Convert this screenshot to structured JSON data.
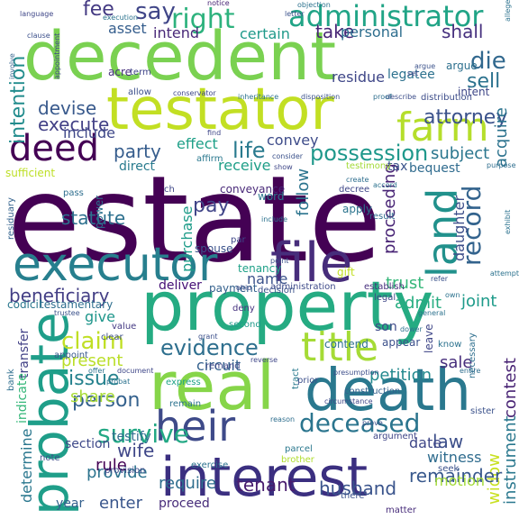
{
  "colors": {
    "background": "#ffffff",
    "palette": [
      "#440154",
      "#46327e",
      "#365c8d",
      "#277f8e",
      "#1fa187",
      "#4ac16d",
      "#a0da39",
      "#dde318"
    ]
  },
  "words": [
    {
      "text": "estate",
      "color": "#440154"
    },
    {
      "text": "decedent",
      "color": "#7ad151"
    },
    {
      "text": "testator",
      "color": "#c2df23"
    },
    {
      "text": "property",
      "color": "#25ab82"
    },
    {
      "text": "interest",
      "color": "#3b2f80"
    },
    {
      "text": "real",
      "color": "#86d549"
    },
    {
      "text": "death",
      "color": "#2a788e"
    },
    {
      "text": "probate",
      "color": "#1f9e89"
    },
    {
      "text": "executor",
      "color": "#277f8e"
    },
    {
      "text": "file",
      "color": "#472d7b"
    },
    {
      "text": "title",
      "color": "#a5db36"
    },
    {
      "text": "heir",
      "color": "#3e4a89"
    },
    {
      "text": "deed",
      "color": "#440154"
    },
    {
      "text": "land",
      "color": "#21918c"
    },
    {
      "text": "farm",
      "color": "#b5de2b"
    },
    {
      "text": "administrator",
      "color": "#20a486"
    },
    {
      "text": "right",
      "color": "#2db27d"
    },
    {
      "text": "say",
      "color": "#404688"
    },
    {
      "text": "fee",
      "color": "#443a83"
    },
    {
      "text": "record",
      "color": "#33638d"
    },
    {
      "text": "possession",
      "color": "#1f988b"
    },
    {
      "text": "attorney",
      "color": "#3b528b"
    },
    {
      "text": "die",
      "color": "#31688e"
    },
    {
      "text": "sell",
      "color": "#2c728e"
    },
    {
      "text": "take",
      "color": "#482576"
    },
    {
      "text": "shall",
      "color": "#46307e"
    },
    {
      "text": "personal",
      "color": "#2e6e8e"
    },
    {
      "text": "certain",
      "color": "#1f9a8a"
    },
    {
      "text": "intend",
      "color": "#482878"
    },
    {
      "text": "asset",
      "color": "#355e8d"
    },
    {
      "text": "intention",
      "color": "#228c8d"
    },
    {
      "text": "devise",
      "color": "#38598c"
    },
    {
      "text": "execute",
      "color": "#424086"
    },
    {
      "text": "include",
      "color": "#3f4889"
    },
    {
      "text": "party",
      "color": "#365d8d"
    },
    {
      "text": "effect",
      "color": "#1fa088"
    },
    {
      "text": "life",
      "color": "#297a8e"
    },
    {
      "text": "convey",
      "color": "#3e4c8a"
    },
    {
      "text": "receive",
      "color": "#1f9f88"
    },
    {
      "text": "subject",
      "color": "#2a768e"
    },
    {
      "text": "acquire",
      "color": "#2c738e"
    },
    {
      "text": "deceased",
      "color": "#2b758e"
    },
    {
      "text": "claim",
      "color": "#c0df25"
    },
    {
      "text": "evidence",
      "color": "#2e6f8e"
    },
    {
      "text": "survive",
      "color": "#22a884"
    },
    {
      "text": "issue",
      "color": "#26828e"
    },
    {
      "text": "person",
      "color": "#34618d"
    },
    {
      "text": "beneficiary",
      "color": "#433e85"
    },
    {
      "text": "statute",
      "color": "#2d708e"
    },
    {
      "text": "pay",
      "color": "#404588"
    },
    {
      "text": "trust",
      "color": "#35b779"
    },
    {
      "text": "admit",
      "color": "#27ad81"
    },
    {
      "text": "joint",
      "color": "#1e9b8a"
    },
    {
      "text": "law",
      "color": "#3c4f8a"
    },
    {
      "text": "sale",
      "color": "#472e7c"
    },
    {
      "text": "petition",
      "color": "#23898e"
    },
    {
      "text": "contest",
      "color": "#482374"
    },
    {
      "text": "instrument",
      "color": "#2a788e"
    },
    {
      "text": "widow",
      "color": "#c8e020"
    },
    {
      "text": "remainder",
      "color": "#38588c"
    },
    {
      "text": "husband",
      "color": "#3a548c"
    },
    {
      "text": "tenant",
      "color": "#481c6e"
    },
    {
      "text": "require",
      "color": "#2e6e8e"
    },
    {
      "text": "enter",
      "color": "#39568c"
    },
    {
      "text": "provide",
      "color": "#2c738e"
    },
    {
      "text": "wife",
      "color": "#3f4788"
    },
    {
      "text": "share",
      "color": "#a8db34"
    },
    {
      "text": "present",
      "color": "#bade28"
    },
    {
      "text": "give",
      "color": "#1f968b"
    },
    {
      "text": "circuit",
      "color": "#34618d"
    },
    {
      "text": "follow",
      "color": "#2b748e"
    },
    {
      "text": "proceeding",
      "color": "#482475"
    },
    {
      "text": "daughter",
      "color": "#3d4e8a"
    },
    {
      "text": "purchase",
      "color": "#1e9c89"
    },
    {
      "text": "name",
      "color": "#3b528b"
    },
    {
      "text": "deliver",
      "color": "#440f76"
    },
    {
      "text": "determine",
      "color": "#2a778e"
    },
    {
      "text": "rule",
      "color": "#440154"
    },
    {
      "text": "section",
      "color": "#3e4989"
    },
    {
      "text": "testify",
      "color": "#2f6c8e"
    },
    {
      "text": "transfer",
      "color": "#424186"
    },
    {
      "text": "direct",
      "color": "#297b8e"
    },
    {
      "text": "residue",
      "color": "#3f4788"
    },
    {
      "text": "legatee",
      "color": "#2c718e"
    },
    {
      "text": "tax",
      "color": "#3a538b"
    },
    {
      "text": "bequest",
      "color": "#2f6b8e"
    },
    {
      "text": "apply",
      "color": "#2b748e"
    },
    {
      "text": "date",
      "color": "#3f4788"
    },
    {
      "text": "year",
      "color": "#34608d"
    },
    {
      "text": "proceed",
      "color": "#472c7a"
    },
    {
      "text": "witness",
      "color": "#2f6c8e"
    },
    {
      "text": "motion",
      "color": "#a2da37"
    },
    {
      "text": "son",
      "color": "#3e4a89"
    },
    {
      "text": "contend",
      "color": "#2d718e"
    },
    {
      "text": "appear",
      "color": "#3c508b"
    },
    {
      "text": "intent",
      "color": "#3f4788"
    },
    {
      "text": "argue",
      "color": "#2d708e"
    },
    {
      "text": "acre",
      "color": "#472f7d"
    },
    {
      "text": "term",
      "color": "#404588"
    },
    {
      "text": "allow",
      "color": "#3c4f8a"
    },
    {
      "text": "testimony",
      "color": "#a2da37"
    },
    {
      "text": "distribution",
      "color": "#3d4d8a"
    },
    {
      "text": "conveyance",
      "color": "#482878"
    },
    {
      "text": "spouse",
      "color": "#3b528b"
    },
    {
      "text": "tenancy",
      "color": "#1fa188"
    },
    {
      "text": "power",
      "color": "#2c728e"
    },
    {
      "text": "payment",
      "color": "#34618d"
    },
    {
      "text": "administration",
      "color": "#3e4a89"
    },
    {
      "text": "establish",
      "color": "#472f7d"
    },
    {
      "text": "legal",
      "color": "#404688"
    },
    {
      "text": "codicil",
      "color": "#2a778e"
    },
    {
      "text": "testamentary",
      "color": "#2e6e8e"
    },
    {
      "text": "sufficient",
      "color": "#bddf26"
    },
    {
      "text": "residuary",
      "color": "#33628d"
    },
    {
      "text": "word",
      "color": "#2a788e"
    },
    {
      "text": "decree",
      "color": "#3f4788"
    },
    {
      "text": "result",
      "color": "#2f6c8e"
    },
    {
      "text": "gift",
      "color": "#c2df23"
    },
    {
      "text": "decision",
      "color": "#3b528b"
    },
    {
      "text": "deny",
      "color": "#46337f"
    },
    {
      "text": "second",
      "color": "#1f9a8a"
    },
    {
      "text": "leave",
      "color": "#3f4788"
    },
    {
      "text": "know",
      "color": "#2c728e"
    },
    {
      "text": "value",
      "color": "#443983"
    },
    {
      "text": "clear",
      "color": "#3d4e8a"
    },
    {
      "text": "appoint",
      "color": "#38588c"
    },
    {
      "text": "bank",
      "color": "#2e6e8e"
    },
    {
      "text": "indicate",
      "color": "#35b779"
    },
    {
      "text": "remand",
      "color": "#3f4889"
    },
    {
      "text": "express",
      "color": "#20a386"
    },
    {
      "text": "remain",
      "color": "#2c728e"
    },
    {
      "text": "tract",
      "color": "#297a8e"
    },
    {
      "text": "prior",
      "color": "#3c4f8a"
    },
    {
      "text": "construction",
      "color": "#34618d"
    },
    {
      "text": "parcel",
      "color": "#2a788e"
    },
    {
      "text": "brother",
      "color": "#b0dd2f"
    },
    {
      "text": "necessary",
      "color": "#2e6f8e"
    },
    {
      "text": "sister",
      "color": "#3b528b"
    },
    {
      "text": "argument",
      "color": "#404688"
    },
    {
      "text": "seek",
      "color": "#3b528b"
    },
    {
      "text": "note",
      "color": "#3d4e8a"
    },
    {
      "text": "provision",
      "color": "#3e4989"
    },
    {
      "text": "exercise",
      "color": "#2c728e"
    },
    {
      "text": "matter",
      "color": "#472c7a"
    },
    {
      "text": "there",
      "color": "#3b528b"
    },
    {
      "text": "pass",
      "color": "#2e6e8e"
    },
    {
      "text": "notice",
      "color": "#482475"
    },
    {
      "text": "objection",
      "color": "#2c728e"
    },
    {
      "text": "letter",
      "color": "#3b528b"
    },
    {
      "text": "language",
      "color": "#3f4788"
    },
    {
      "text": "execution",
      "color": "#2c738e"
    },
    {
      "text": "clause",
      "color": "#3c508b"
    },
    {
      "text": "appointment",
      "color": "#3f4788"
    },
    {
      "text": "involve",
      "color": "#33638d"
    },
    {
      "text": "disposition",
      "color": "#3b528b"
    },
    {
      "text": "inheritance",
      "color": "#2c728e"
    },
    {
      "text": "conservator",
      "color": "#3f4788"
    },
    {
      "text": "describe",
      "color": "#3d4e8a"
    },
    {
      "text": "proof",
      "color": "#2e6e8e"
    },
    {
      "text": "consider",
      "color": "#3b528b"
    },
    {
      "text": "affirm",
      "color": "#2a788e"
    },
    {
      "text": "show",
      "color": "#3f4788"
    },
    {
      "text": "set",
      "color": "#404688"
    },
    {
      "text": "allege",
      "color": "#2c728e"
    },
    {
      "text": "grant",
      "color": "#3c508b"
    },
    {
      "text": "reason",
      "color": "#2e6e8e"
    },
    {
      "text": "prove",
      "color": "#3b528b"
    },
    {
      "text": "offer",
      "color": "#2c728e"
    },
    {
      "text": "document",
      "color": "#3f4788"
    },
    {
      "text": "general",
      "color": "#2c728e"
    },
    {
      "text": "trustee",
      "color": "#3b528b"
    },
    {
      "text": "reverse",
      "color": "#3f4788"
    },
    {
      "text": "presumption",
      "color": "#3d4e8a"
    },
    {
      "text": "circumstance",
      "color": "#3f4788"
    },
    {
      "text": "entire",
      "color": "#2e6e8e"
    },
    {
      "text": "refer",
      "color": "#3b528b"
    },
    {
      "text": "own",
      "color": "#2c728e"
    },
    {
      "text": "purpose",
      "color": "#2e6e8e"
    },
    {
      "text": "exhibit",
      "color": "#2c728e"
    },
    {
      "text": "ch",
      "color": "#3f4788"
    },
    {
      "text": "par",
      "color": "#3f4788"
    },
    {
      "text": "attempt",
      "color": "#2c728e"
    },
    {
      "text": "create",
      "color": "#2e6e8e"
    },
    {
      "text": "accord",
      "color": "#2c728e"
    },
    {
      "text": "find",
      "color": "#3f4788"
    },
    {
      "text": "point",
      "color": "#3b528b"
    },
    {
      "text": "probat",
      "color": "#2c728e"
    },
    {
      "text": "argue",
      "color": "#3b528b"
    },
    {
      "text": "include",
      "color": "#2c728e"
    },
    {
      "text": "ohio",
      "color": "#3f4788"
    },
    {
      "text": "dower",
      "color": "#2c728e"
    }
  ]
}
